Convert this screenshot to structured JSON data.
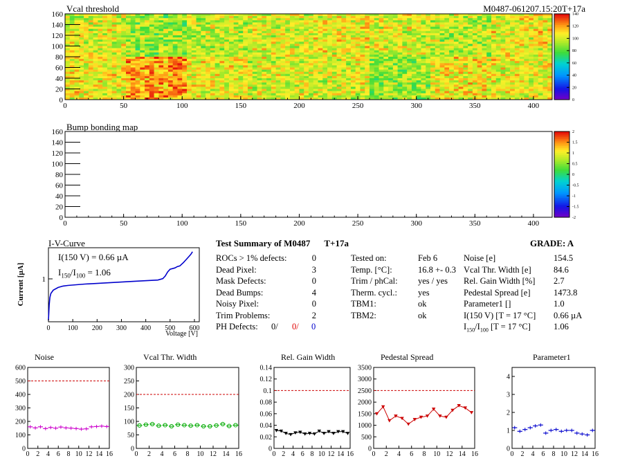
{
  "header": {
    "title_left": "Vcal threshold",
    "title_right": "M0487-061207.15:20T+17a"
  },
  "map1": {
    "title": "Vcal threshold",
    "xlim": [
      0,
      416
    ],
    "ylim": [
      0,
      160
    ],
    "xticks": [
      0,
      50,
      100,
      150,
      200,
      250,
      300,
      350,
      400
    ],
    "yticks": [
      0,
      20,
      40,
      60,
      80,
      100,
      120,
      140,
      160
    ],
    "colorbar_ticks": [
      "140",
      "120",
      "100",
      "80",
      "60",
      "40",
      "20",
      "0"
    ],
    "roc_means_top": [
      105,
      95,
      100,
      105,
      110,
      105,
      100,
      110
    ],
    "roc_means_bottom": [
      110,
      125,
      110,
      105,
      105,
      95,
      110,
      110
    ]
  },
  "map2": {
    "title": "Bump bonding map",
    "xlim": [
      0,
      416
    ],
    "ylim": [
      0,
      160
    ],
    "xticks": [
      0,
      50,
      100,
      150,
      200,
      250,
      300,
      350,
      400
    ],
    "yticks": [
      0,
      20,
      40,
      60,
      80,
      100,
      120,
      140,
      160
    ],
    "colorbar_ticks": [
      "2",
      "1.5",
      "1",
      "0.5",
      "0",
      "-0.5",
      "-1",
      "-1.5",
      "-2"
    ]
  },
  "iv": {
    "title": "I-V-Curve",
    "ylabel": "Current [µA]",
    "xlabel": "Voltage [V]",
    "ytick": "1",
    "xticks": [
      0,
      100,
      200,
      300,
      400,
      500,
      600
    ],
    "annotation1": "I(150 V) = 0.66 µA",
    "annotation2_a": "I",
    "annotation2_sub1": "150",
    "annotation2_b": "/I",
    "annotation2_sub2": "100",
    "annotation2_c": " =  1.06",
    "color": "#0000cc"
  },
  "summary": {
    "title": "Test Summary of M0487",
    "temp_tag": "T+17a",
    "grade": "GRADE:  A",
    "col1_labels": [
      "ROCs > 1% defects:",
      "Dead Pixel:",
      "Mask Defects:",
      "Dead Bumps:",
      "Noisy Pixel:",
      "Trim Problems:",
      "PH Defects:"
    ],
    "col1_values": [
      "0",
      "3",
      "0",
      "4",
      "0",
      "2"
    ],
    "ph_values": [
      "0/",
      "0/",
      "0"
    ],
    "col2_labels": [
      "Tested on:",
      "Temp. [°C]:",
      "Trim / phCal:",
      "Therm. cycl.:",
      "TBM1:",
      "TBM2:"
    ],
    "col2_values": [
      "Feb 6",
      "16.8 +- 0.3",
      "yes / yes",
      "yes",
      "ok",
      "ok"
    ],
    "col3_labels": [
      "Noise [e]",
      "Vcal Thr. Width [e]",
      "Rel. Gain Width [%]",
      "Pedestal Spread [e]",
      "Parameter1 []",
      "I(150 V) [T = 17 °C]"
    ],
    "col3_values": [
      "154.5",
      "84.6",
      "2.7",
      "1473.8",
      "1.0",
      "0.66 µA",
      "1.06"
    ],
    "ratio_label_a": "I",
    "ratio_label_sub1": "150",
    "ratio_label_b": "/I",
    "ratio_label_sub2": "100",
    "ratio_label_c": "  [T = 17 °C]"
  },
  "chart_data": [
    {
      "type": "scatter",
      "title": "Noise",
      "x": [
        0,
        1,
        2,
        3,
        4,
        5,
        6,
        7,
        8,
        9,
        10,
        11,
        12,
        13,
        14,
        15
      ],
      "values": [
        160,
        152,
        160,
        147,
        155,
        150,
        158,
        152,
        150,
        147,
        143,
        145,
        160,
        162,
        165,
        162
      ],
      "xlim": [
        0,
        16
      ],
      "ylim": [
        0,
        600
      ],
      "yticks": [
        0,
        100,
        200,
        300,
        400,
        500,
        600
      ],
      "xticks": [
        0,
        2,
        4,
        6,
        8,
        10,
        12,
        14,
        16
      ],
      "threshold": 500,
      "color": "#cc00cc",
      "marker": "cross"
    },
    {
      "type": "scatter",
      "title": "Vcal Thr. Width",
      "x": [
        0,
        1,
        2,
        3,
        4,
        5,
        6,
        7,
        8,
        9,
        10,
        11,
        12,
        13,
        14,
        15
      ],
      "values": [
        85,
        88,
        90,
        84,
        86,
        82,
        88,
        86,
        84,
        86,
        82,
        82,
        85,
        90,
        83,
        86
      ],
      "xlim": [
        0,
        16
      ],
      "ylim": [
        0,
        300
      ],
      "yticks": [
        0,
        50,
        100,
        150,
        200,
        250,
        300
      ],
      "xticks": [
        0,
        2,
        4,
        6,
        8,
        10,
        12,
        14,
        16
      ],
      "threshold": 200,
      "color": "#00aa00",
      "marker": "circle"
    },
    {
      "type": "line",
      "title": "Rel. Gain Width",
      "x": [
        0,
        1,
        2,
        3,
        4,
        5,
        6,
        7,
        8,
        9,
        10,
        11,
        12,
        13,
        14,
        15
      ],
      "values": [
        0.031,
        0.03,
        0.026,
        0.024,
        0.027,
        0.028,
        0.025,
        0.026,
        0.025,
        0.03,
        0.026,
        0.029,
        0.026,
        0.029,
        0.029,
        0.026
      ],
      "xlim": [
        0,
        16
      ],
      "ylim": [
        0,
        0.14
      ],
      "yticks": [
        0,
        0.02,
        0.04,
        0.06,
        0.08,
        0.1,
        0.12,
        0.14
      ],
      "xticks": [
        0,
        2,
        4,
        6,
        8,
        10,
        12,
        14,
        16
      ],
      "threshold": 0.1,
      "color": "#000000",
      "marker": "triangle"
    },
    {
      "type": "line",
      "title": "Pedestal Spread",
      "x": [
        0,
        1,
        2,
        3,
        4,
        5,
        6,
        7,
        8,
        9,
        10,
        11,
        12,
        13,
        14,
        15
      ],
      "values": [
        1500,
        1800,
        1200,
        1400,
        1300,
        1050,
        1250,
        1350,
        1400,
        1700,
        1400,
        1350,
        1650,
        1850,
        1750,
        1550
      ],
      "xlim": [
        0,
        16
      ],
      "ylim": [
        0,
        3500
      ],
      "yticks": [
        0,
        500,
        1000,
        1500,
        2000,
        2500,
        3000,
        3500
      ],
      "xticks": [
        0,
        2,
        4,
        6,
        8,
        10,
        12,
        14,
        16
      ],
      "threshold": 2500,
      "color": "#cc0000",
      "marker": "triangle"
    },
    {
      "type": "scatter",
      "title": "Parameter1",
      "x": [
        0,
        1,
        2,
        3,
        4,
        5,
        6,
        7,
        8,
        9,
        10,
        11,
        12,
        13,
        14,
        15
      ],
      "values": [
        1.15,
        0.95,
        1.05,
        1.15,
        1.25,
        1.3,
        0.85,
        1.0,
        1.05,
        0.95,
        1.0,
        1.0,
        0.85,
        0.8,
        0.75,
        1.0
      ],
      "xlim": [
        0,
        16
      ],
      "ylim": [
        0,
        4.5
      ],
      "yticks": [
        0,
        1,
        2,
        3,
        4
      ],
      "xticks": [
        0,
        2,
        4,
        6,
        8,
        10,
        12,
        14,
        16
      ],
      "color": "#0000cc",
      "marker": "cross"
    }
  ]
}
